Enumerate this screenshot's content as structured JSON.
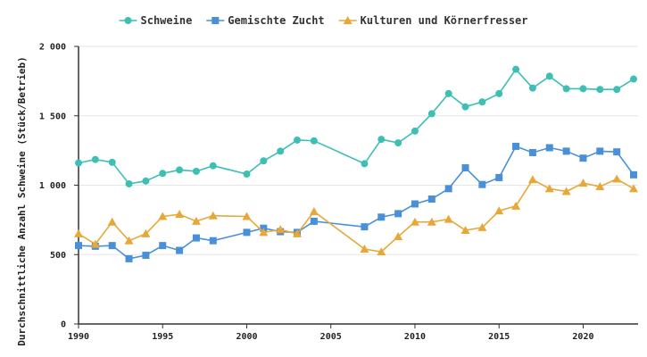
{
  "chart_data": {
    "type": "line",
    "title": "",
    "xlabel": "",
    "ylabel": "Durchschnittliche Anzahl Schweine (Stück/Betrieb)",
    "xlim": [
      1990,
      2023
    ],
    "ylim": [
      0,
      2000
    ],
    "x_ticks": [
      1990,
      1995,
      2000,
      2005,
      2010,
      2015,
      2020
    ],
    "y_ticks": [
      0,
      500,
      1000,
      1500,
      2000
    ],
    "y_tick_labels": [
      "0",
      "500",
      "1 000",
      "1 500",
      "2 000"
    ],
    "grid": true,
    "legend_position": "top-center",
    "series": [
      {
        "name": "Schweine",
        "color": "#3dbfb3",
        "marker": "circle",
        "x": [
          1990,
          1991,
          1992,
          1993,
          1994,
          1995,
          1996,
          1997,
          1998,
          2000,
          2001,
          2002,
          2003,
          2004,
          2007,
          2008,
          2009,
          2010,
          2011,
          2012,
          2013,
          2014,
          2015,
          2016,
          2017,
          2018,
          2019,
          2020,
          2021,
          2022,
          2023
        ],
        "values": [
          1160,
          1185,
          1165,
          1010,
          1030,
          1085,
          1110,
          1100,
          1140,
          1080,
          1175,
          1245,
          1325,
          1320,
          1155,
          1330,
          1305,
          1390,
          1515,
          1660,
          1565,
          1600,
          1660,
          1835,
          1700,
          1785,
          1695,
          1695,
          1690,
          1690,
          1765
        ]
      },
      {
        "name": "Gemischte Zucht",
        "color": "#4a90d9",
        "marker": "square",
        "x": [
          1990,
          1991,
          1992,
          1993,
          1994,
          1995,
          1996,
          1997,
          1998,
          2000,
          2001,
          2002,
          2003,
          2004,
          2007,
          2008,
          2009,
          2010,
          2011,
          2012,
          2013,
          2014,
          2015,
          2016,
          2017,
          2018,
          2019,
          2020,
          2021,
          2022,
          2023
        ],
        "values": [
          565,
          560,
          565,
          470,
          495,
          565,
          530,
          620,
          600,
          660,
          690,
          665,
          660,
          740,
          700,
          770,
          795,
          865,
          900,
          975,
          1125,
          1005,
          1055,
          1280,
          1235,
          1270,
          1245,
          1195,
          1245,
          1240,
          1075
        ]
      },
      {
        "name": "Kulturen und Körnerfresser",
        "color": "#e8a838",
        "marker": "triangle",
        "x": [
          1990,
          1991,
          1992,
          1993,
          1994,
          1995,
          1996,
          1997,
          1998,
          2000,
          2001,
          2002,
          2003,
          2004,
          2007,
          2008,
          2009,
          2010,
          2011,
          2012,
          2013,
          2014,
          2015,
          2016,
          2017,
          2018,
          2019,
          2020,
          2021,
          2022,
          2023
        ],
        "values": [
          650,
          575,
          735,
          600,
          650,
          775,
          790,
          740,
          780,
          775,
          660,
          680,
          650,
          810,
          540,
          520,
          630,
          735,
          735,
          755,
          675,
          695,
          815,
          850,
          1040,
          975,
          955,
          1015,
          990,
          1045,
          975
        ]
      }
    ]
  }
}
